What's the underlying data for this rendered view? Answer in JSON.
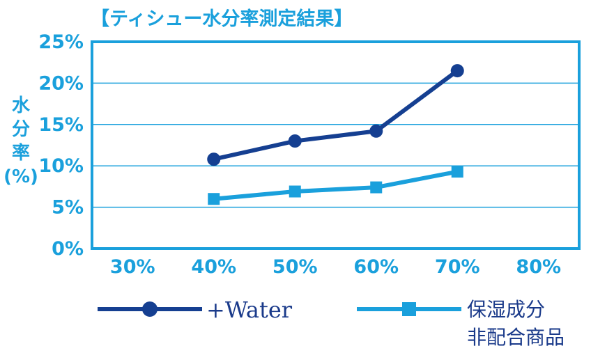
{
  "chart_data": {
    "type": "line",
    "title": "【ティシュー水分率測定結果】",
    "ylabel": "水分率\n(%)",
    "xlabel": "",
    "x_ticks": [
      "30%",
      "40%",
      "50%",
      "60%",
      "70%",
      "80%"
    ],
    "x_values": [
      30,
      40,
      50,
      60,
      70,
      80
    ],
    "y_ticks": [
      "0%",
      "5%",
      "10%",
      "15%",
      "20%",
      "25%"
    ],
    "xlim": [
      25,
      85
    ],
    "ylim": [
      0,
      25
    ],
    "grid": true,
    "legend_position": "bottom",
    "series": [
      {
        "name": "+Water",
        "marker": "circle",
        "color": "#153f91",
        "x": [
          40,
          50,
          60,
          70
        ],
        "y": [
          10.8,
          13.0,
          14.2,
          21.5
        ]
      },
      {
        "name": "保湿成分\n非配合商品",
        "marker": "square",
        "color": "#1aa0dc",
        "x": [
          40,
          50,
          60,
          70
        ],
        "y": [
          6.0,
          6.9,
          7.4,
          9.3
        ]
      }
    ]
  },
  "colors": {
    "axis": "#1aa0dc",
    "grid": "#1aa0dc",
    "text": "#1aa0dc",
    "legend_text": "#1a3a8a"
  }
}
